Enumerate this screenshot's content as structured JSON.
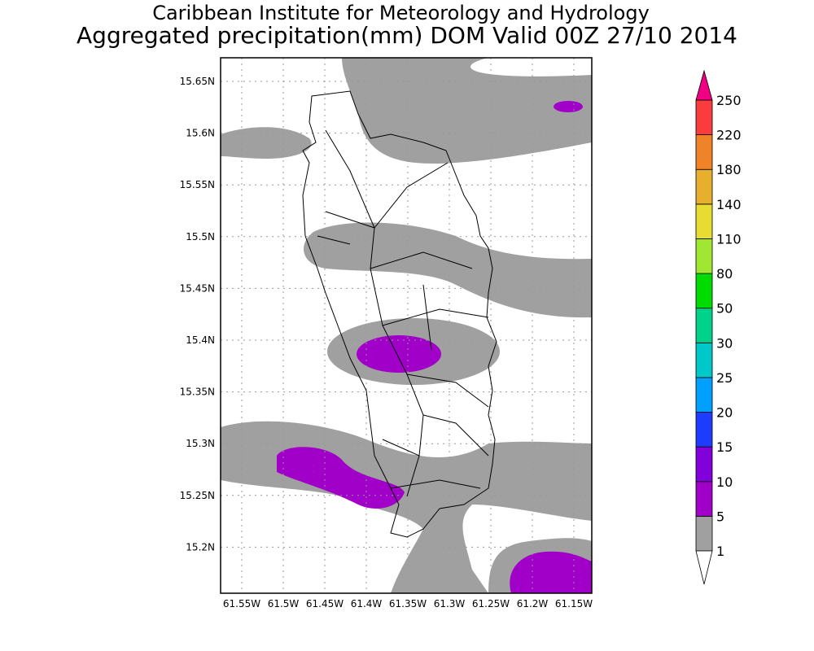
{
  "header": {
    "title": "Caribbean Institute for Meteorology and Hydrology",
    "subtitle": "Aggregated precipitation(mm) DOM Valid 00Z 27/10 2014"
  },
  "map": {
    "lat_ticks": [
      "15.65N",
      "15.6N",
      "15.55N",
      "15.5N",
      "15.45N",
      "15.4N",
      "15.35N",
      "15.3N",
      "15.25N",
      "15.2N"
    ],
    "lat_values": [
      15.65,
      15.6,
      15.55,
      15.5,
      15.45,
      15.4,
      15.35,
      15.3,
      15.25,
      15.2
    ],
    "lon_ticks": [
      "61.55W",
      "61.5W",
      "61.45W",
      "61.4W",
      "61.35W",
      "61.3W",
      "61.25W",
      "61.2W",
      "61.15W"
    ],
    "lon_values": [
      -61.55,
      -61.5,
      -61.45,
      -61.4,
      -61.35,
      -61.3,
      -61.25,
      -61.2,
      -61.15
    ],
    "colors": {
      "band_1_5": "#a0a0a0",
      "band_5_10": "#a000c8"
    }
  },
  "colorbar": {
    "labels": [
      "1",
      "5",
      "10",
      "15",
      "20",
      "25",
      "30",
      "50",
      "80",
      "110",
      "140",
      "180",
      "220",
      "250"
    ],
    "colors": [
      "#a0a0a0",
      "#a000c8",
      "#8200dc",
      "#1e3cff",
      "#00a0ff",
      "#00c8c8",
      "#00d28c",
      "#00dc00",
      "#a0e632",
      "#e6dc32",
      "#e6af2d",
      "#f08228",
      "#fa3c3c"
    ],
    "over_color": "#f00082",
    "under_color": "#ffffff"
  }
}
